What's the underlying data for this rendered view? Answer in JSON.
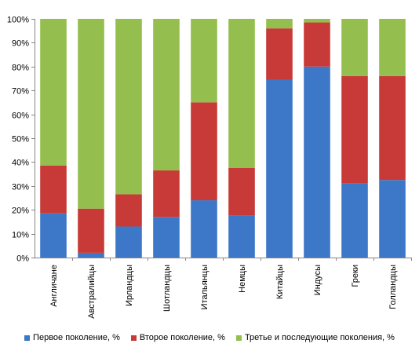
{
  "chart_data": {
    "type": "bar",
    "stacked": true,
    "percent_stacked": true,
    "categories": [
      "Англичане",
      "Австралийцы",
      "Ирландцы",
      "Шотландцы",
      "Итальянцы",
      "Немцы",
      "Китайцы",
      "Индусы",
      "Греки",
      "Голландцы"
    ],
    "series": [
      {
        "name": "Первое поколение, %",
        "color": "#3d78c8",
        "values": [
          18.5,
          2,
          13,
          17,
          24,
          17.5,
          74.5,
          80,
          31,
          32.5
        ]
      },
      {
        "name": "Второе  поколение, %",
        "color": "#c83a37",
        "values": [
          20,
          18.5,
          13.5,
          19.5,
          41,
          20,
          21.5,
          18.5,
          45,
          43.5
        ]
      },
      {
        "name": "Третье и последующие поколения, %",
        "color": "#94bf4e",
        "values": [
          61.5,
          79.5,
          73.5,
          63.5,
          35,
          62.5,
          4,
          1.5,
          24,
          24
        ]
      }
    ],
    "y_ticks": [
      "0%",
      "10%",
      "20%",
      "30%",
      "40%",
      "50%",
      "60%",
      "70%",
      "80%",
      "90%",
      "100%"
    ],
    "ylim": [
      0,
      100
    ],
    "grid": false,
    "legend_position": "bottom"
  }
}
